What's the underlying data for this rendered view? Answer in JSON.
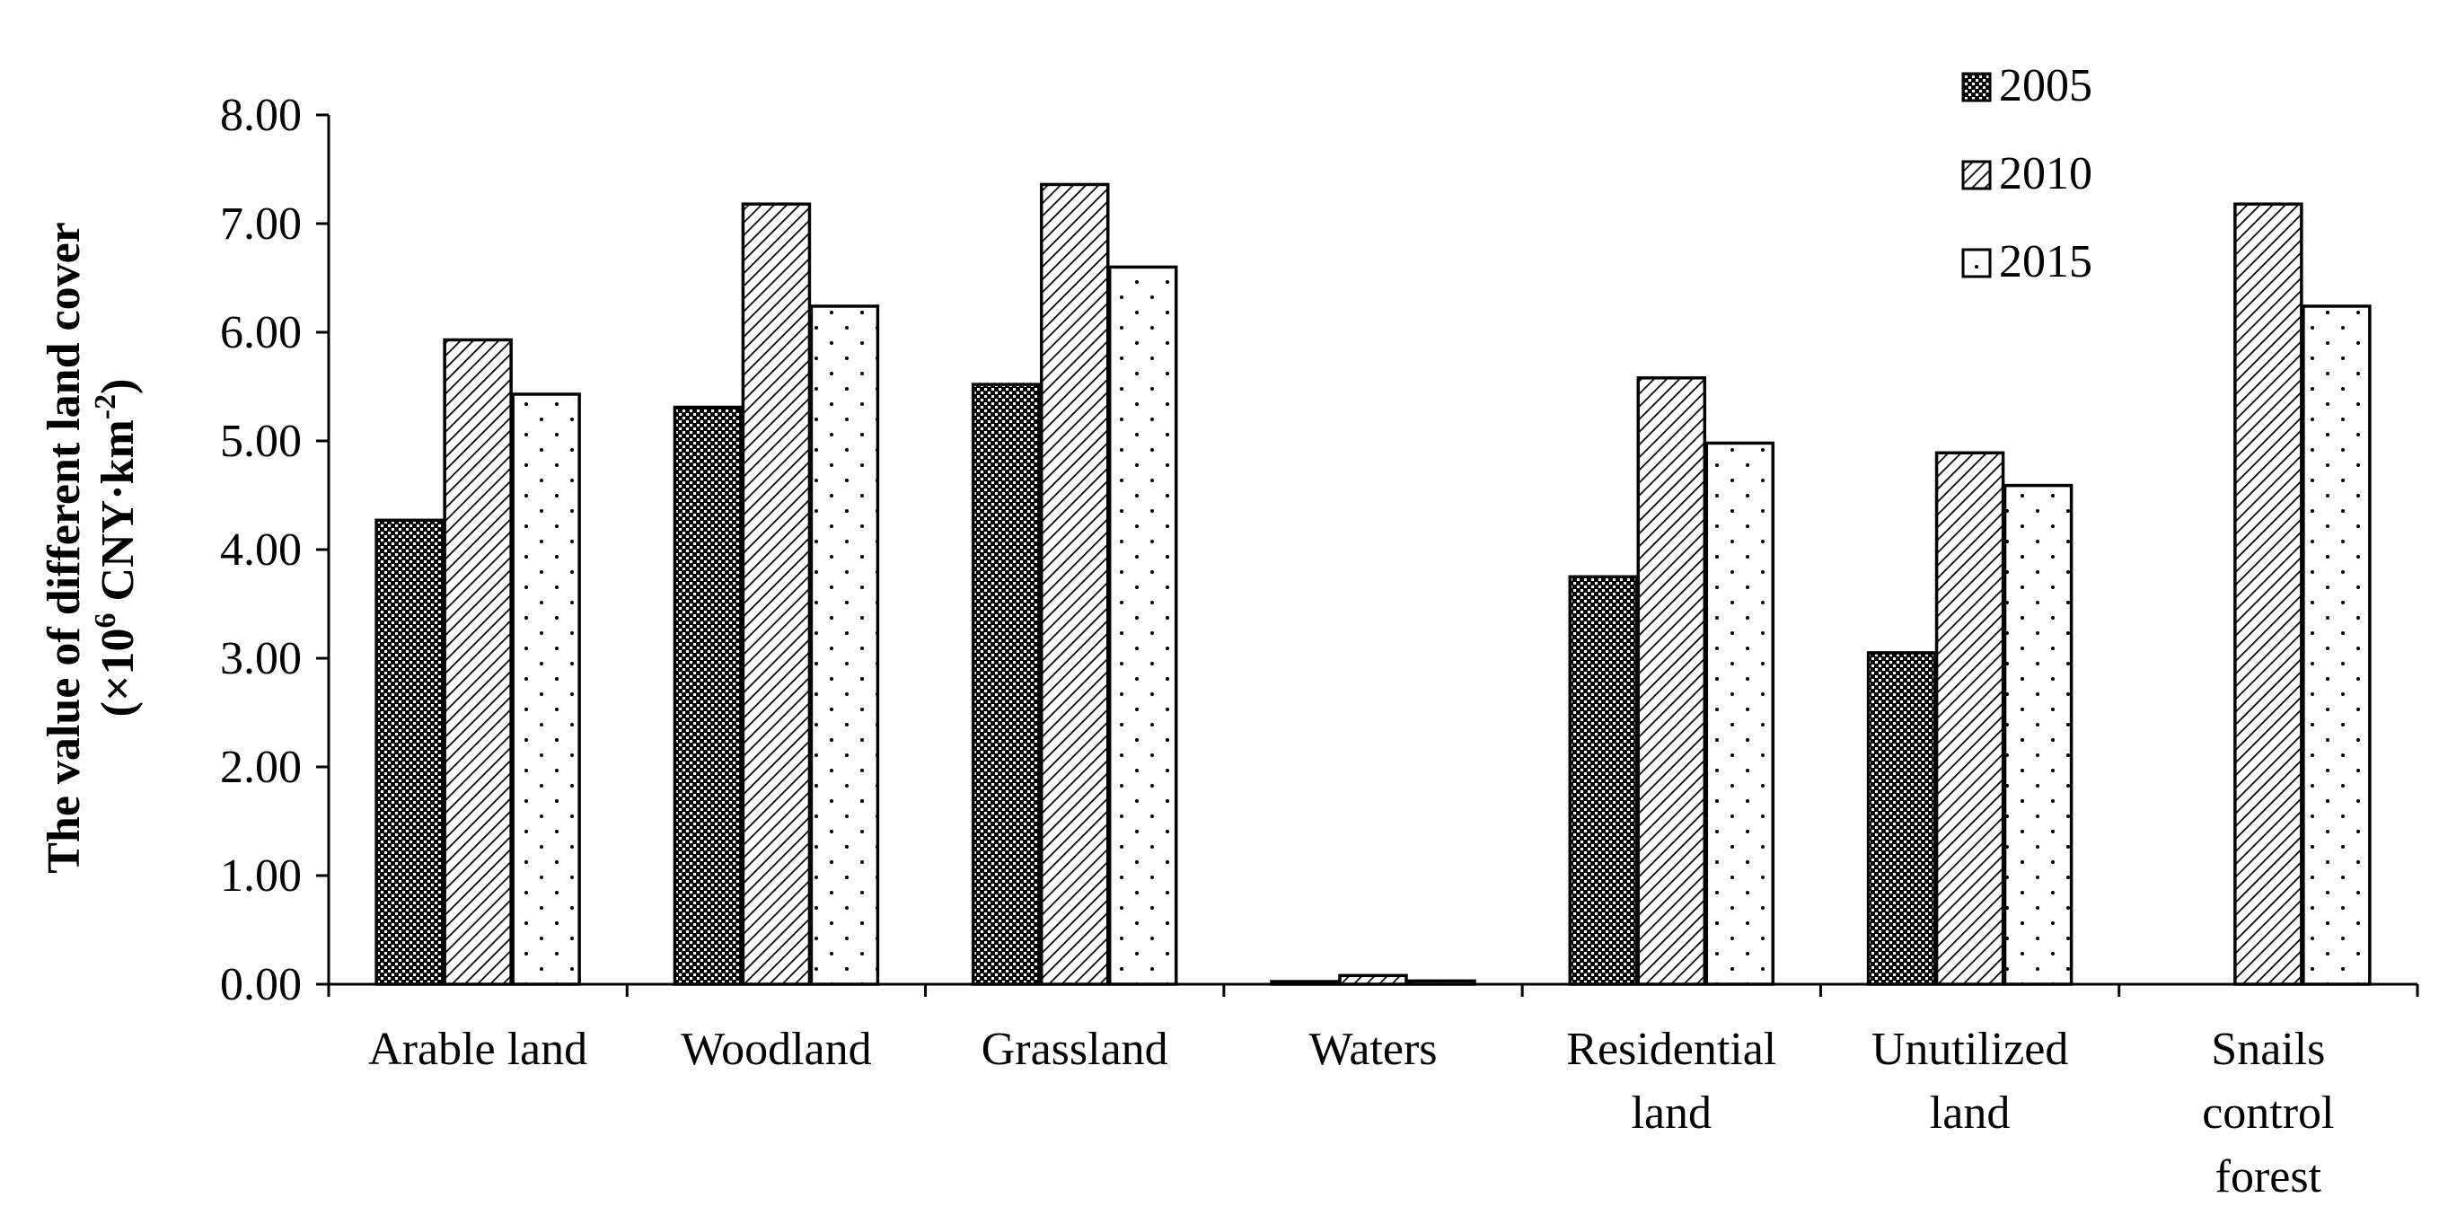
{
  "chart_data": {
    "type": "bar",
    "categories": [
      [
        "Arable land"
      ],
      [
        "Woodland"
      ],
      [
        "Grassland"
      ],
      [
        "Waters"
      ],
      [
        "Residential",
        "land"
      ],
      [
        "Unutilized",
        "land"
      ],
      [
        "Snails",
        "control",
        "forest"
      ]
    ],
    "series": [
      {
        "name": "2005",
        "pattern": "checker",
        "values": [
          4.27,
          5.31,
          5.52,
          0.01,
          3.75,
          3.05,
          0
        ]
      },
      {
        "name": "2010",
        "pattern": "hatch",
        "values": [
          5.93,
          7.18,
          7.36,
          0.08,
          5.58,
          4.89,
          7.18
        ]
      },
      {
        "name": "2015",
        "pattern": "dots",
        "values": [
          5.43,
          6.24,
          6.6,
          0.03,
          4.98,
          4.59,
          6.24
        ]
      }
    ],
    "ylabel_line1": "The value of different land cover",
    "ylabel_line2_prefix": "(×10",
    "ylabel_line2_sup1": "6",
    "ylabel_line2_mid": " CNY·km",
    "ylabel_line2_sup2": "-2",
    "ylabel_line2_suffix": ")",
    "ylim": [
      0,
      8
    ],
    "yticks": [
      "0.00",
      "1.00",
      "2.00",
      "3.00",
      "4.00",
      "5.00",
      "6.00",
      "7.00",
      "8.00"
    ],
    "legend_position": "top-right",
    "grid": false,
    "colors": {
      "bar_fill": "#ffffff",
      "stroke": "#000000"
    }
  }
}
